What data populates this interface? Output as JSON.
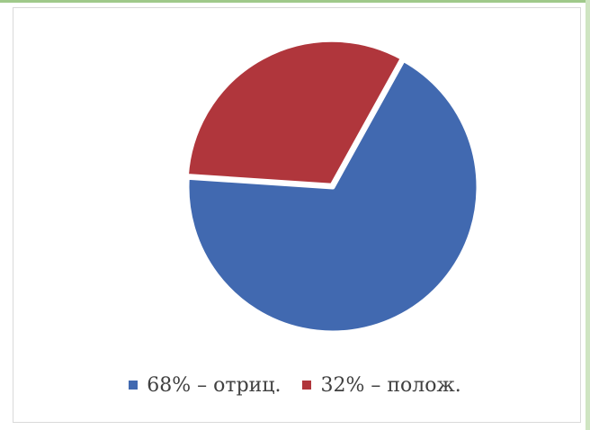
{
  "chart_data": {
    "type": "pie",
    "slices": [
      {
        "label": "68% – отриц.",
        "value": 68,
        "color": "#4169b0"
      },
      {
        "label": "32% – полож.",
        "value": 32,
        "color": "#b0363c"
      }
    ],
    "legend": {
      "placement": "bottom",
      "entries": [
        "68% – отриц.",
        "32% – полож."
      ]
    },
    "title": ""
  }
}
